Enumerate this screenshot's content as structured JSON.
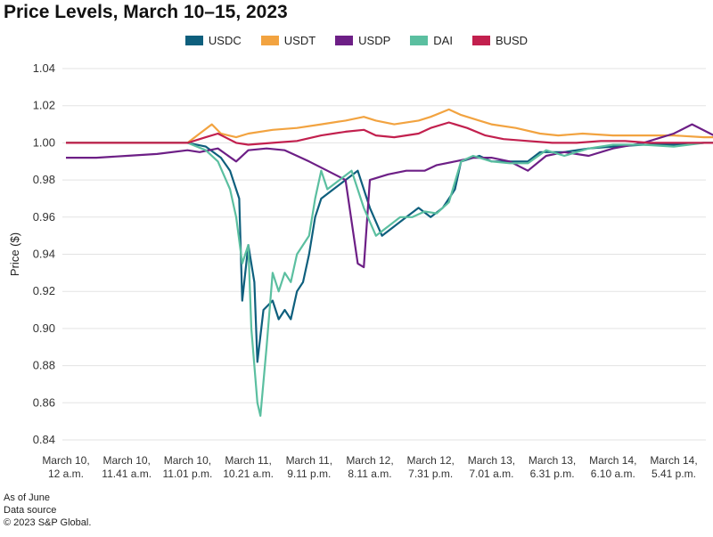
{
  "chart_data": {
    "type": "line",
    "title": "Price Levels, March 10–15, 2023",
    "ylabel": "Price ($)",
    "xlabel": "",
    "ylim": [
      0.84,
      1.04
    ],
    "yticks": [
      "1.04",
      "1.02",
      "1.00",
      "0.98",
      "0.96",
      "0.94",
      "0.92",
      "0.90",
      "0.88",
      "0.86",
      "0.84"
    ],
    "categories": [
      [
        "March 10,",
        "12 a.m."
      ],
      [
        "March 10,",
        "11.41 a.m."
      ],
      [
        "March 10,",
        "11.01 p.m."
      ],
      [
        "March 11,",
        "10.21 a.m."
      ],
      [
        "March 11,",
        "9.11 p.m."
      ],
      [
        "March 12,",
        "8.11 a.m."
      ],
      [
        "March 12,",
        "7.31 p.m."
      ],
      [
        "March 13,",
        "7.01 a.m."
      ],
      [
        "March 13,",
        "6.31 p.m."
      ],
      [
        "March 14,",
        "6.10 a.m."
      ],
      [
        "March 14,",
        "5.41 p.m."
      ]
    ],
    "grid": "horizontal",
    "legend_position": "top-center",
    "series": [
      {
        "name": "USDC",
        "color": "#0e5f7d",
        "points": [
          [
            0,
            1.0
          ],
          [
            1,
            1.0
          ],
          [
            2,
            1.0
          ],
          [
            2.3,
            0.998
          ],
          [
            2.55,
            0.992
          ],
          [
            2.7,
            0.985
          ],
          [
            2.85,
            0.97
          ],
          [
            2.9,
            0.915
          ],
          [
            3.0,
            0.945
          ],
          [
            3.1,
            0.925
          ],
          [
            3.15,
            0.882
          ],
          [
            3.25,
            0.91
          ],
          [
            3.4,
            0.915
          ],
          [
            3.5,
            0.905
          ],
          [
            3.6,
            0.91
          ],
          [
            3.7,
            0.905
          ],
          [
            3.8,
            0.92
          ],
          [
            3.9,
            0.925
          ],
          [
            4.0,
            0.94
          ],
          [
            4.1,
            0.96
          ],
          [
            4.2,
            0.97
          ],
          [
            4.4,
            0.975
          ],
          [
            4.6,
            0.98
          ],
          [
            4.8,
            0.985
          ],
          [
            5.0,
            0.965
          ],
          [
            5.2,
            0.95
          ],
          [
            5.4,
            0.955
          ],
          [
            5.6,
            0.96
          ],
          [
            5.8,
            0.965
          ],
          [
            6.0,
            0.96
          ],
          [
            6.2,
            0.965
          ],
          [
            6.3,
            0.97
          ],
          [
            6.4,
            0.975
          ],
          [
            6.5,
            0.99
          ],
          [
            6.8,
            0.993
          ],
          [
            7.0,
            0.99
          ],
          [
            7.3,
            0.99
          ],
          [
            7.6,
            0.99
          ],
          [
            7.8,
            0.995
          ],
          [
            8.2,
            0.995
          ],
          [
            8.6,
            0.997
          ],
          [
            9.0,
            0.998
          ],
          [
            9.5,
            0.999
          ],
          [
            10,
            0.999
          ],
          [
            10.5,
            1.0
          ],
          [
            10.9,
            1.0
          ]
        ]
      },
      {
        "name": "USDT",
        "color": "#f2a340",
        "points": [
          [
            0,
            1.0
          ],
          [
            1,
            1.0
          ],
          [
            2,
            1.0
          ],
          [
            2.2,
            1.005
          ],
          [
            2.4,
            1.01
          ],
          [
            2.55,
            1.005
          ],
          [
            2.8,
            1.003
          ],
          [
            3.0,
            1.005
          ],
          [
            3.4,
            1.007
          ],
          [
            3.8,
            1.008
          ],
          [
            4.2,
            1.01
          ],
          [
            4.6,
            1.012
          ],
          [
            4.9,
            1.014
          ],
          [
            5.1,
            1.012
          ],
          [
            5.4,
            1.01
          ],
          [
            5.8,
            1.012
          ],
          [
            6.0,
            1.014
          ],
          [
            6.3,
            1.018
          ],
          [
            6.5,
            1.015
          ],
          [
            6.8,
            1.012
          ],
          [
            7.0,
            1.01
          ],
          [
            7.4,
            1.008
          ],
          [
            7.8,
            1.005
          ],
          [
            8.1,
            1.004
          ],
          [
            8.5,
            1.005
          ],
          [
            9.0,
            1.004
          ],
          [
            9.5,
            1.004
          ],
          [
            10,
            1.004
          ],
          [
            10.5,
            1.003
          ],
          [
            10.9,
            1.003
          ]
        ]
      },
      {
        "name": "USDP",
        "color": "#6d1f86",
        "points": [
          [
            0,
            0.992
          ],
          [
            0.5,
            0.992
          ],
          [
            1,
            0.993
          ],
          [
            1.5,
            0.994
          ],
          [
            2.0,
            0.996
          ],
          [
            2.2,
            0.995
          ],
          [
            2.5,
            0.997
          ],
          [
            2.8,
            0.99
          ],
          [
            3.0,
            0.996
          ],
          [
            3.3,
            0.997
          ],
          [
            3.6,
            0.996
          ],
          [
            3.8,
            0.993
          ],
          [
            4.0,
            0.99
          ],
          [
            4.3,
            0.985
          ],
          [
            4.6,
            0.98
          ],
          [
            4.8,
            0.935
          ],
          [
            4.9,
            0.933
          ],
          [
            5.0,
            0.98
          ],
          [
            5.3,
            0.983
          ],
          [
            5.6,
            0.985
          ],
          [
            5.9,
            0.985
          ],
          [
            6.1,
            0.988
          ],
          [
            6.4,
            0.99
          ],
          [
            6.7,
            0.992
          ],
          [
            7.0,
            0.992
          ],
          [
            7.3,
            0.99
          ],
          [
            7.6,
            0.985
          ],
          [
            7.9,
            0.993
          ],
          [
            8.2,
            0.995
          ],
          [
            8.6,
            0.993
          ],
          [
            9.0,
            0.997
          ],
          [
            9.5,
            1.0
          ],
          [
            10.0,
            1.005
          ],
          [
            10.3,
            1.01
          ],
          [
            10.6,
            1.005
          ],
          [
            10.9,
            1.0
          ]
        ]
      },
      {
        "name": "DAI",
        "color": "#5bbfa0",
        "points": [
          [
            0,
            1.0
          ],
          [
            1,
            1.0
          ],
          [
            2,
            1.0
          ],
          [
            2.3,
            0.996
          ],
          [
            2.5,
            0.99
          ],
          [
            2.7,
            0.975
          ],
          [
            2.8,
            0.96
          ],
          [
            2.9,
            0.935
          ],
          [
            3.0,
            0.945
          ],
          [
            3.05,
            0.9
          ],
          [
            3.15,
            0.86
          ],
          [
            3.2,
            0.853
          ],
          [
            3.3,
            0.89
          ],
          [
            3.4,
            0.93
          ],
          [
            3.5,
            0.92
          ],
          [
            3.6,
            0.93
          ],
          [
            3.7,
            0.925
          ],
          [
            3.8,
            0.94
          ],
          [
            3.9,
            0.945
          ],
          [
            4.0,
            0.95
          ],
          [
            4.1,
            0.97
          ],
          [
            4.2,
            0.985
          ],
          [
            4.3,
            0.975
          ],
          [
            4.5,
            0.98
          ],
          [
            4.7,
            0.985
          ],
          [
            4.9,
            0.965
          ],
          [
            5.1,
            0.95
          ],
          [
            5.3,
            0.955
          ],
          [
            5.5,
            0.96
          ],
          [
            5.7,
            0.96
          ],
          [
            5.9,
            0.963
          ],
          [
            6.1,
            0.962
          ],
          [
            6.3,
            0.968
          ],
          [
            6.5,
            0.99
          ],
          [
            6.7,
            0.993
          ],
          [
            7.0,
            0.99
          ],
          [
            7.3,
            0.989
          ],
          [
            7.6,
            0.989
          ],
          [
            7.9,
            0.996
          ],
          [
            8.2,
            0.993
          ],
          [
            8.6,
            0.997
          ],
          [
            9.0,
            0.999
          ],
          [
            9.5,
            0.999
          ],
          [
            10,
            0.998
          ],
          [
            10.5,
            1.0
          ],
          [
            10.9,
            1.0
          ]
        ]
      },
      {
        "name": "BUSD",
        "color": "#c2204e",
        "points": [
          [
            0,
            1.0
          ],
          [
            1,
            1.0
          ],
          [
            2,
            1.0
          ],
          [
            2.3,
            1.003
          ],
          [
            2.5,
            1.005
          ],
          [
            2.8,
            1.0
          ],
          [
            3.0,
            0.999
          ],
          [
            3.4,
            1.0
          ],
          [
            3.8,
            1.001
          ],
          [
            4.2,
            1.004
          ],
          [
            4.6,
            1.006
          ],
          [
            4.9,
            1.007
          ],
          [
            5.1,
            1.004
          ],
          [
            5.4,
            1.003
          ],
          [
            5.8,
            1.005
          ],
          [
            6.0,
            1.008
          ],
          [
            6.3,
            1.011
          ],
          [
            6.6,
            1.008
          ],
          [
            6.9,
            1.004
          ],
          [
            7.2,
            1.002
          ],
          [
            7.6,
            1.001
          ],
          [
            8.0,
            1.0
          ],
          [
            8.4,
            1.0
          ],
          [
            8.8,
            1.001
          ],
          [
            9.2,
            1.001
          ],
          [
            9.6,
            1.0
          ],
          [
            10,
            1.0
          ],
          [
            10.5,
            1.0
          ],
          [
            10.9,
            1.0
          ]
        ]
      }
    ]
  },
  "footer": {
    "line1": "As of June",
    "line2": "Data source",
    "line3": "© 2023 S&P Global."
  }
}
